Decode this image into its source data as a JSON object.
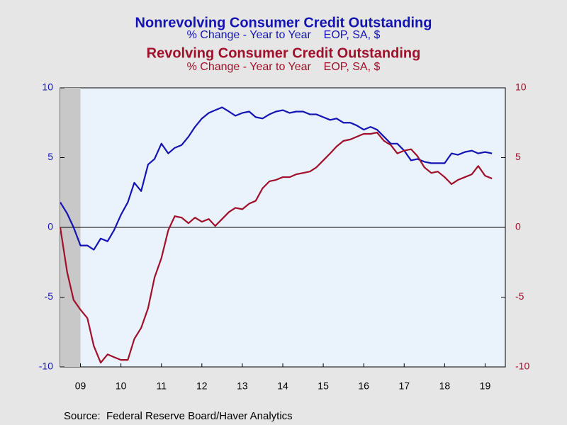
{
  "chart_data": {
    "type": "line",
    "titles": [
      {
        "title": "Nonrevolving Consumer Credit Outstanding",
        "subtitle": "% Change - Year to Year    EOP, SA, $",
        "color": "#1414b4"
      },
      {
        "title": "Revolving Consumer Credit Outstanding",
        "subtitle": "% Change - Year to Year    EOP, SA, $",
        "color": "#a0102a"
      }
    ],
    "source": "Source:  Federal Reserve Board/Haver Analytics",
    "x": [
      2009.0,
      2009.17,
      2009.33,
      2009.5,
      2009.67,
      2009.83,
      2010.0,
      2010.17,
      2010.33,
      2010.5,
      2010.67,
      2010.83,
      2011.0,
      2011.17,
      2011.33,
      2011.5,
      2011.67,
      2011.83,
      2012.0,
      2012.17,
      2012.33,
      2012.5,
      2012.67,
      2012.83,
      2013.0,
      2013.17,
      2013.33,
      2013.5,
      2013.67,
      2013.83,
      2014.0,
      2014.17,
      2014.33,
      2014.5,
      2014.67,
      2014.83,
      2015.0,
      2015.17,
      2015.33,
      2015.5,
      2015.67,
      2015.83,
      2016.0,
      2016.17,
      2016.33,
      2016.5,
      2016.67,
      2016.83,
      2017.0,
      2017.17,
      2017.33,
      2017.5,
      2017.67,
      2017.83,
      2018.0,
      2018.17,
      2018.33,
      2018.5,
      2018.67,
      2018.83,
      2019.0,
      2019.17,
      2019.33,
      2019.5,
      2019.67
    ],
    "series": [
      {
        "name": "Nonrevolving Consumer Credit Outstanding",
        "color": "#1414b4",
        "axis": "y",
        "values": [
          1.8,
          1.0,
          0.0,
          -1.3,
          -1.3,
          -1.6,
          -0.8,
          -1.0,
          -0.2,
          0.9,
          1.8,
          3.2,
          2.6,
          4.5,
          4.9,
          6.0,
          5.3,
          5.7,
          5.9,
          6.5,
          7.2,
          7.8,
          8.2,
          8.4,
          8.6,
          8.3,
          8.0,
          8.2,
          8.3,
          7.9,
          7.8,
          8.1,
          8.3,
          8.4,
          8.2,
          8.3,
          8.3,
          8.1,
          8.1,
          7.9,
          7.7,
          7.8,
          7.5,
          7.5,
          7.3,
          7.0,
          7.2,
          7.0,
          6.5,
          6.0,
          6.0,
          5.5,
          4.8,
          4.9,
          4.7,
          4.6,
          4.6,
          4.6,
          5.3,
          5.2,
          5.4,
          5.5,
          5.3,
          5.4,
          5.3
        ]
      },
      {
        "name": "Revolving Consumer Credit Outstanding",
        "color": "#a0102a",
        "axis": "y2",
        "values": [
          0.0,
          -3.2,
          -5.2,
          -5.9,
          -6.5,
          -8.5,
          -9.7,
          -9.1,
          -9.3,
          -9.5,
          -9.5,
          -8.0,
          -7.2,
          -5.8,
          -3.6,
          -2.2,
          -0.2,
          0.8,
          0.7,
          0.3,
          0.7,
          0.4,
          0.6,
          0.1,
          0.6,
          1.1,
          1.4,
          1.3,
          1.7,
          1.9,
          2.8,
          3.3,
          3.4,
          3.6,
          3.6,
          3.8,
          3.9,
          4.0,
          4.3,
          4.8,
          5.3,
          5.8,
          6.2,
          6.3,
          6.5,
          6.7,
          6.7,
          6.8,
          6.2,
          5.9,
          5.3,
          5.5,
          5.6,
          5.1,
          4.3,
          3.9,
          4.0,
          3.6,
          3.1,
          3.4,
          3.6,
          3.8,
          4.4,
          3.7,
          3.5
        ]
      }
    ],
    "recessions": [
      [
        2009.0,
        2009.5
      ]
    ],
    "xlim": [
      2009,
      2020
    ],
    "xticks": [
      {
        "value": 2009.5,
        "label": "09"
      },
      {
        "value": 2010.5,
        "label": "10"
      },
      {
        "value": 2011.5,
        "label": "11"
      },
      {
        "value": 2012.5,
        "label": "12"
      },
      {
        "value": 2013.5,
        "label": "13"
      },
      {
        "value": 2014.5,
        "label": "14"
      },
      {
        "value": 2015.5,
        "label": "15"
      },
      {
        "value": 2016.5,
        "label": "16"
      },
      {
        "value": 2017.5,
        "label": "17"
      },
      {
        "value": 2018.5,
        "label": "18"
      },
      {
        "value": 2019.5,
        "label": "19"
      }
    ],
    "ylim": [
      -10,
      10
    ],
    "yticks": [
      -10,
      -5,
      0,
      5,
      10
    ],
    "y2lim": [
      -10,
      10
    ],
    "y2ticks": [
      -10,
      -5,
      0,
      5,
      10
    ],
    "zero_line": true
  }
}
